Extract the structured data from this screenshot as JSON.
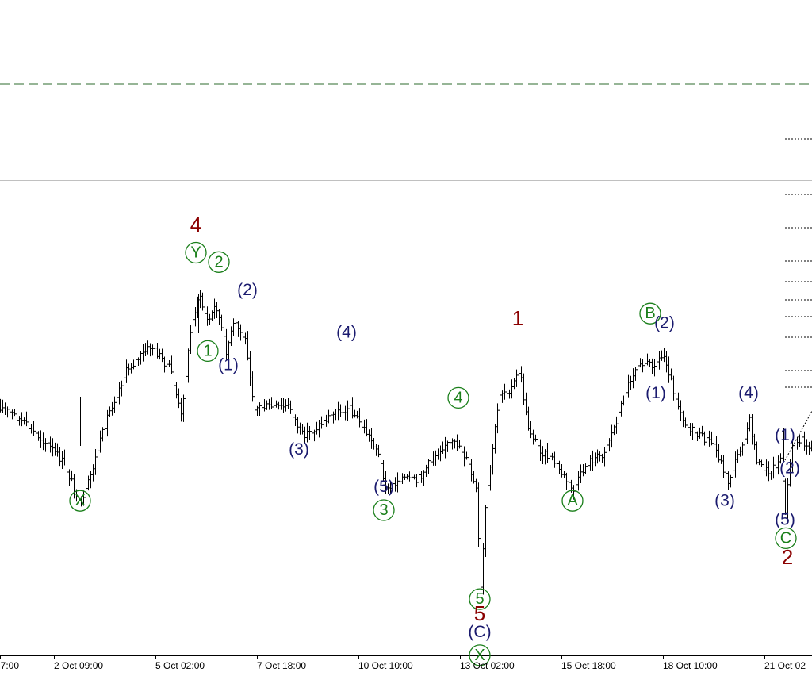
{
  "chart_data": {
    "type": "ohlc",
    "x_ticks": [
      "7:00",
      "2 Oct 09:00",
      "5 Oct 02:00",
      "7 Oct 18:00",
      "10 Oct 10:00",
      "13 Oct 02:00",
      "15 Oct 18:00",
      "18 Oct 10:00",
      "21 Oct 02"
    ],
    "grid": false,
    "colors": {
      "bars": "#000000",
      "dashed_level": "#2e6b2e",
      "dotted_levels": "#000000",
      "separator": "#c0c0c0"
    },
    "price_path": [
      [
        0,
        0.52
      ],
      [
        20,
        0.5
      ],
      [
        40,
        0.47
      ],
      [
        60,
        0.44
      ],
      [
        80,
        0.4
      ],
      [
        95,
        0.34
      ],
      [
        101,
        0.3
      ],
      [
        115,
        0.38
      ],
      [
        135,
        0.5
      ],
      [
        160,
        0.6
      ],
      [
        190,
        0.65
      ],
      [
        215,
        0.6
      ],
      [
        228,
        0.5
      ],
      [
        240,
        0.68
      ],
      [
        250,
        0.76
      ],
      [
        262,
        0.7
      ],
      [
        272,
        0.74
      ],
      [
        285,
        0.64
      ],
      [
        295,
        0.7
      ],
      [
        310,
        0.66
      ],
      [
        320,
        0.52
      ],
      [
        345,
        0.52
      ],
      [
        365,
        0.52
      ],
      [
        380,
        0.46
      ],
      [
        395,
        0.47
      ],
      [
        415,
        0.5
      ],
      [
        440,
        0.52
      ],
      [
        460,
        0.47
      ],
      [
        475,
        0.43
      ],
      [
        488,
        0.34
      ],
      [
        505,
        0.37
      ],
      [
        525,
        0.36
      ],
      [
        545,
        0.41
      ],
      [
        560,
        0.44
      ],
      [
        578,
        0.44
      ],
      [
        590,
        0.4
      ],
      [
        600,
        0.34
      ],
      [
        606,
        0.13
      ],
      [
        612,
        0.3
      ],
      [
        620,
        0.42
      ],
      [
        630,
        0.55
      ],
      [
        645,
        0.56
      ],
      [
        655,
        0.6
      ],
      [
        665,
        0.48
      ],
      [
        680,
        0.43
      ],
      [
        700,
        0.4
      ],
      [
        722,
        0.34
      ],
      [
        740,
        0.4
      ],
      [
        760,
        0.42
      ],
      [
        775,
        0.48
      ],
      [
        790,
        0.56
      ],
      [
        805,
        0.62
      ],
      [
        820,
        0.61
      ],
      [
        838,
        0.63
      ],
      [
        850,
        0.55
      ],
      [
        865,
        0.48
      ],
      [
        880,
        0.46
      ],
      [
        900,
        0.44
      ],
      [
        918,
        0.36
      ],
      [
        935,
        0.44
      ],
      [
        945,
        0.49
      ],
      [
        955,
        0.4
      ],
      [
        970,
        0.38
      ],
      [
        984,
        0.41
      ],
      [
        990,
        0.3
      ],
      [
        998,
        0.43
      ],
      [
        1010,
        0.45
      ],
      [
        1024,
        0.43
      ]
    ],
    "wave_labels": [
      {
        "text": "X",
        "x": 101,
        "y": 0.32,
        "color": "#1a7f1a",
        "circled": true
      },
      {
        "text": "4",
        "x": 247,
        "y": 0.91,
        "color": "#8b0000",
        "circled": false
      },
      {
        "text": "Y",
        "x": 247,
        "y": 0.85,
        "color": "#1a7f1a",
        "circled": true
      },
      {
        "text": "2",
        "x": 276,
        "y": 0.83,
        "color": "#1a7f1a",
        "circled": true
      },
      {
        "text": "(2)",
        "x": 312,
        "y": 0.77,
        "color": "#1a1a6e",
        "circled": false
      },
      {
        "text": "1",
        "x": 262,
        "y": 0.64,
        "color": "#1a7f1a",
        "circled": true
      },
      {
        "text": "(1)",
        "x": 288,
        "y": 0.61,
        "color": "#1a1a6e",
        "circled": false
      },
      {
        "text": "(3)",
        "x": 377,
        "y": 0.43,
        "color": "#1a1a6e",
        "circled": false
      },
      {
        "text": "(4)",
        "x": 437,
        "y": 0.68,
        "color": "#1a1a6e",
        "circled": false
      },
      {
        "text": "(5)",
        "x": 484,
        "y": 0.35,
        "color": "#1a1a6e",
        "circled": false
      },
      {
        "text": "3",
        "x": 484,
        "y": 0.3,
        "color": "#1a7f1a",
        "circled": true
      },
      {
        "text": "4",
        "x": 578,
        "y": 0.54,
        "color": "#1a7f1a",
        "circled": true
      },
      {
        "text": "5",
        "x": 605,
        "y": 0.11,
        "color": "#1a7f1a",
        "circled": true
      },
      {
        "text": "5",
        "x": 605,
        "y": 0.08,
        "color": "#8b0000",
        "circled": false
      },
      {
        "text": "(C)",
        "x": 605,
        "y": 0.04,
        "color": "#1a1a6e",
        "circled": false
      },
      {
        "text": "X",
        "x": 605,
        "y": -0.01,
        "color": "#1a7f1a",
        "circled": true
      },
      {
        "text": "1",
        "x": 653,
        "y": 0.71,
        "color": "#8b0000",
        "circled": false
      },
      {
        "text": "A",
        "x": 722,
        "y": 0.32,
        "color": "#1a7f1a",
        "circled": true
      },
      {
        "text": "B",
        "x": 820,
        "y": 0.72,
        "color": "#1a7f1a",
        "circled": true
      },
      {
        "text": "(2)",
        "x": 838,
        "y": 0.7,
        "color": "#1a1a6e",
        "circled": false
      },
      {
        "text": "(1)",
        "x": 827,
        "y": 0.55,
        "color": "#1a1a6e",
        "circled": false
      },
      {
        "text": "(3)",
        "x": 914,
        "y": 0.32,
        "color": "#1a1a6e",
        "circled": false
      },
      {
        "text": "(4)",
        "x": 944,
        "y": 0.55,
        "color": "#1a1a6e",
        "circled": false
      },
      {
        "text": "(1)",
        "x": 990,
        "y": 0.46,
        "color": "#1a1a6e",
        "circled": false
      },
      {
        "text": "(2)",
        "x": 996,
        "y": 0.39,
        "color": "#1a1a6e",
        "circled": false
      },
      {
        "text": "(5)",
        "x": 990,
        "y": 0.28,
        "color": "#1a1a6e",
        "circled": false
      },
      {
        "text": "C",
        "x": 991,
        "y": 0.24,
        "color": "#1a7f1a",
        "circled": true
      },
      {
        "text": "2",
        "x": 993,
        "y": 0.2,
        "color": "#8b0000",
        "circled": false
      }
    ]
  }
}
